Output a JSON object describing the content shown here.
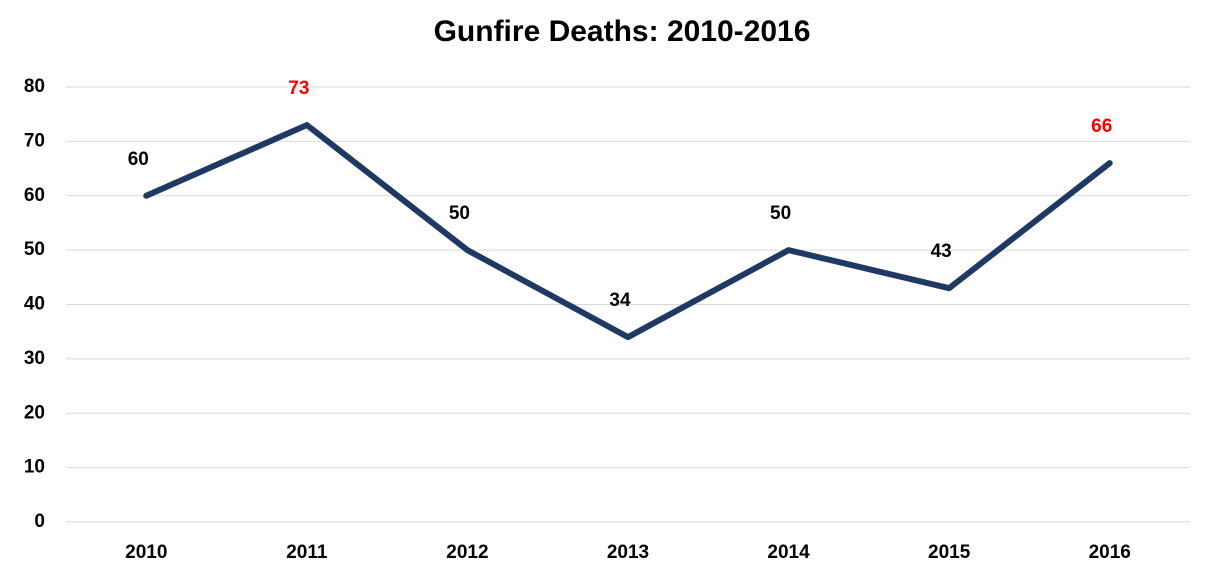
{
  "chart_data": {
    "type": "line",
    "title": "Gunfire Deaths: 2010-2016",
    "categories": [
      "2010",
      "2011",
      "2012",
      "2013",
      "2014",
      "2015",
      "2016"
    ],
    "series": [
      {
        "name": "Gunfire Deaths",
        "color": "#203864",
        "values": [
          60,
          73,
          50,
          34,
          50,
          43,
          66
        ],
        "value_label_colors": [
          "#000000",
          "#ff0000",
          "#000000",
          "#000000",
          "#000000",
          "#000000",
          "#ff0000"
        ]
      }
    ],
    "ylim": [
      0,
      80
    ],
    "yticks": [
      0,
      10,
      20,
      30,
      40,
      50,
      60,
      70,
      80
    ],
    "grid": true,
    "legend": false
  }
}
